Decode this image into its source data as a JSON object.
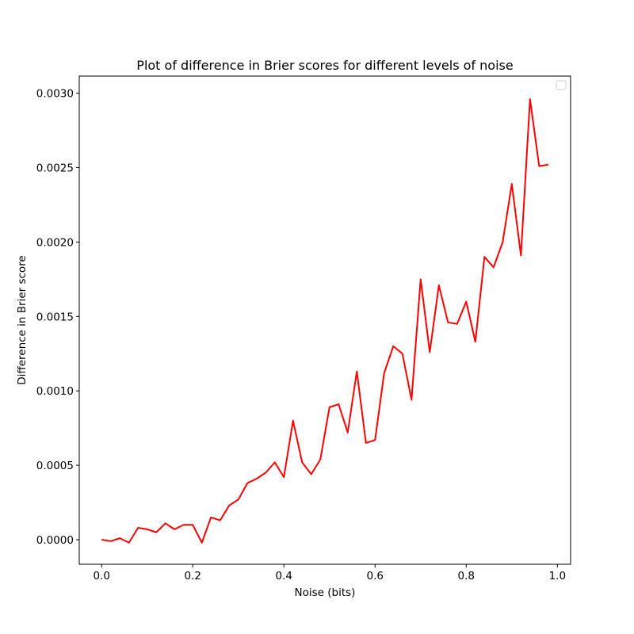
{
  "chart_data": {
    "type": "line",
    "title": "Plot of difference in Brier scores for different levels of noise",
    "xlabel": "Noise (bits)",
    "ylabel": "Difference in Brier score",
    "xlim": [
      -0.049,
      1.029
    ],
    "ylim": [
      -0.000165,
      0.003115
    ],
    "x_ticks": [
      0.0,
      0.2,
      0.4,
      0.6,
      0.8,
      1.0
    ],
    "x_tick_labels": [
      "0.0",
      "0.2",
      "0.4",
      "0.6",
      "0.8",
      "1.0"
    ],
    "y_ticks": [
      0.0,
      0.0005,
      0.001,
      0.0015,
      0.002,
      0.0025,
      0.003
    ],
    "y_tick_labels": [
      "0.0000",
      "0.0005",
      "0.0010",
      "0.0015",
      "0.0020",
      "0.0025",
      "0.0030"
    ],
    "grid": false,
    "legend": "upper right, empty",
    "line_color": "#ff0000",
    "series": [
      {
        "x": [
          0.0,
          0.02,
          0.04,
          0.06,
          0.08,
          0.1,
          0.12,
          0.14,
          0.16,
          0.18,
          0.2,
          0.22,
          0.24,
          0.26,
          0.28,
          0.3,
          0.32,
          0.34,
          0.36,
          0.38,
          0.4,
          0.42,
          0.44,
          0.46,
          0.48,
          0.5,
          0.52,
          0.54,
          0.56,
          0.58,
          0.6,
          0.62,
          0.64,
          0.66,
          0.68,
          0.7,
          0.72,
          0.74,
          0.76,
          0.78,
          0.8,
          0.82,
          0.84,
          0.86,
          0.88,
          0.9,
          0.92,
          0.94,
          0.96,
          0.98
        ],
        "y": [
          0.0,
          -1e-05,
          1e-05,
          -2e-05,
          8e-05,
          7e-05,
          5e-05,
          0.00011,
          7e-05,
          0.0001,
          0.0001,
          -2e-05,
          0.00015,
          0.00013,
          0.00023,
          0.00027,
          0.00038,
          0.00041,
          0.00045,
          0.00052,
          0.00042,
          0.0008,
          0.00052,
          0.00044,
          0.00054,
          0.00089,
          0.00091,
          0.00072,
          0.00113,
          0.00065,
          0.00067,
          0.00112,
          0.0013,
          0.00125,
          0.00094,
          0.00175,
          0.00126,
          0.00171,
          0.00146,
          0.00145,
          0.0016,
          0.00133,
          0.0019,
          0.00183,
          0.002,
          0.00239,
          0.00191,
          0.00296,
          0.00251,
          0.00252
        ]
      }
    ]
  }
}
